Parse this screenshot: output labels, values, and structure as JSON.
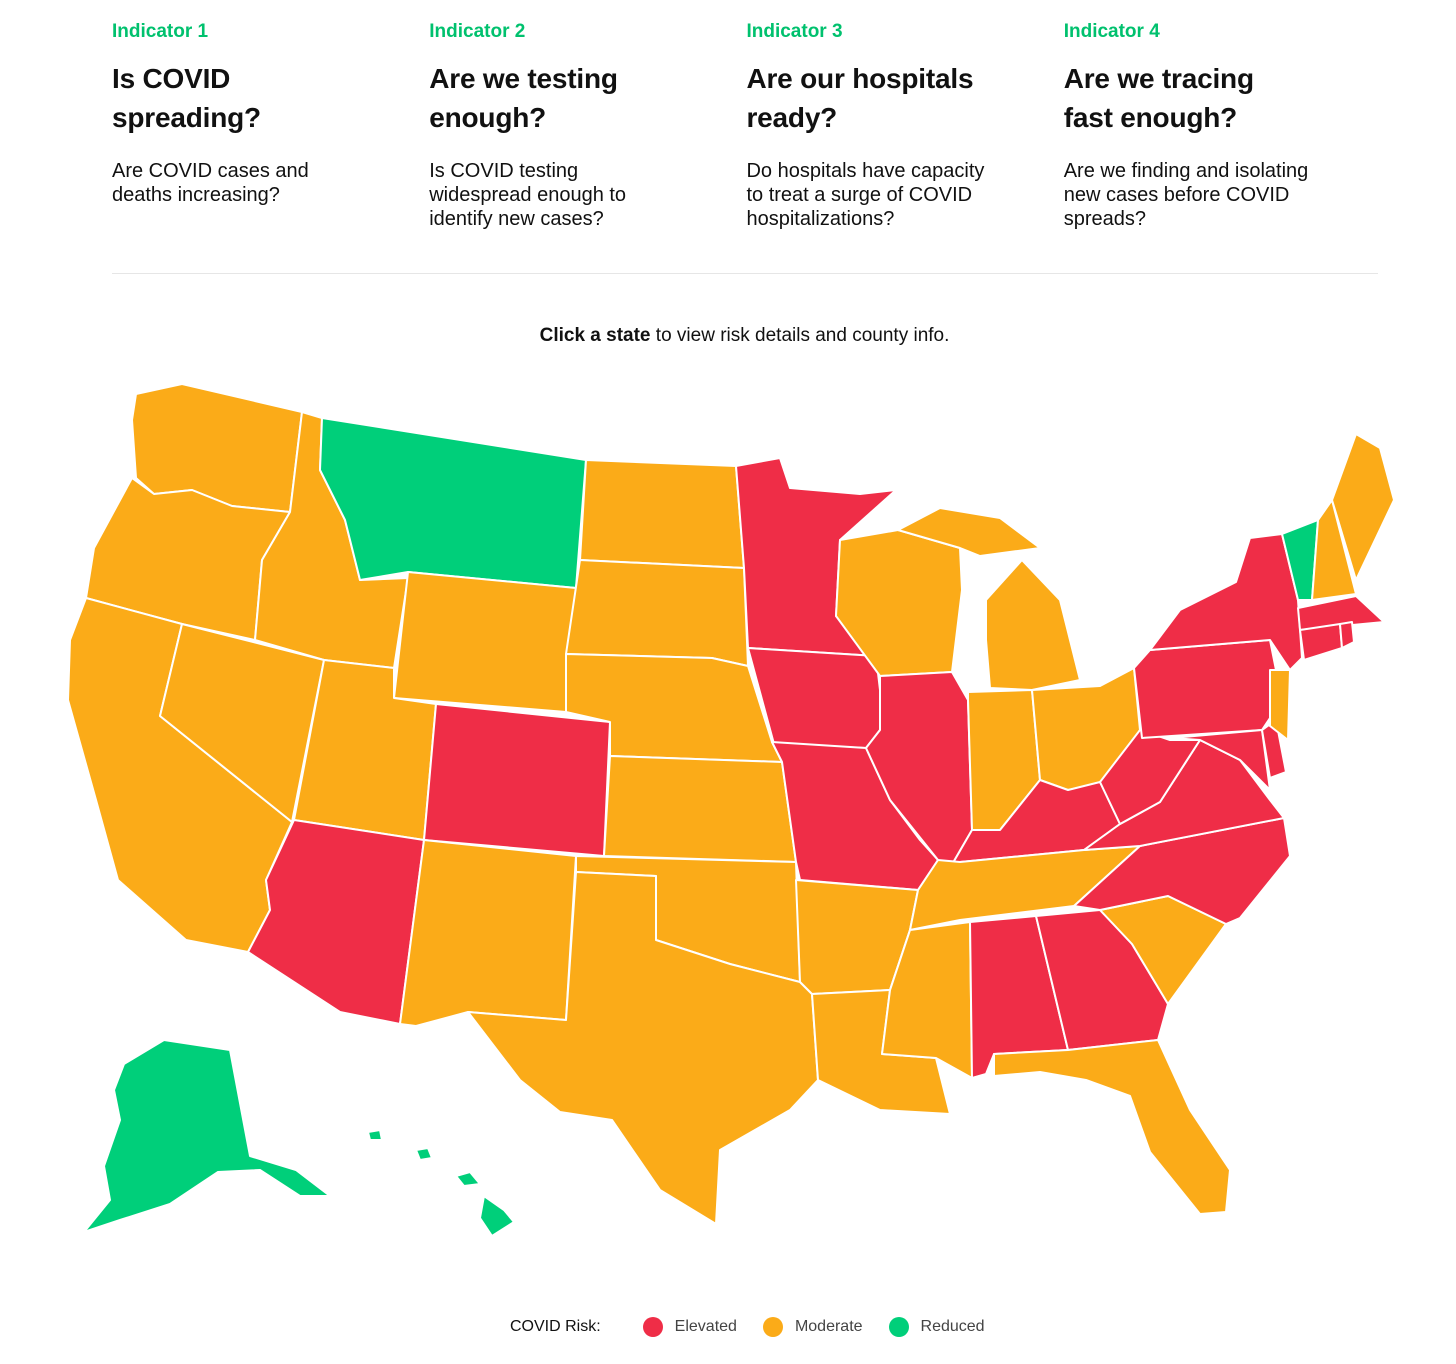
{
  "indicators": [
    {
      "label": "Indicator 1",
      "question": "Is COVID spreading?",
      "description": "Are COVID cases and deaths increasing?"
    },
    {
      "label": "Indicator 2",
      "question": "Are we testing enough?",
      "description": "Is COVID testing widespread enough to identify new cases?"
    },
    {
      "label": "Indicator 3",
      "question": "Are our hospitals ready?",
      "description": "Do hospitals have capacity to treat a surge of COVID hospitalizations?"
    },
    {
      "label": "Indicator 4",
      "question": "Are we tracing fast enough?",
      "description": "Are we finding and isolating new cases before COVID spreads?"
    }
  ],
  "instruction": {
    "bold": "Click a state",
    "rest": " to view risk details and county info."
  },
  "legend": {
    "title": "COVID Risk:",
    "items": [
      {
        "key": "elevated",
        "label": "Elevated"
      },
      {
        "key": "moderate",
        "label": "Moderate"
      },
      {
        "key": "reduced",
        "label": "Reduced"
      }
    ]
  },
  "colors": {
    "elevated": "#ef2d47",
    "moderate": "#fbab18",
    "reduced": "#00cf7a",
    "accent": "#00c16e"
  },
  "states_risk": {
    "WA": "moderate",
    "OR": "moderate",
    "CA": "moderate",
    "ID": "moderate",
    "NV": "moderate",
    "MT": "reduced",
    "WY": "moderate",
    "UT": "moderate",
    "AZ": "elevated",
    "CO": "elevated",
    "NM": "moderate",
    "ND": "moderate",
    "SD": "moderate",
    "NE": "moderate",
    "KS": "moderate",
    "OK": "moderate",
    "TX": "moderate",
    "MN": "elevated",
    "IA": "elevated",
    "MO": "elevated",
    "AR": "moderate",
    "LA": "moderate",
    "WI": "moderate",
    "IL": "elevated",
    "MS": "moderate",
    "MI": "moderate",
    "IN": "moderate",
    "OH": "moderate",
    "KY": "elevated",
    "TN": "moderate",
    "AL": "elevated",
    "GA": "elevated",
    "FL": "moderate",
    "SC": "moderate",
    "NC": "elevated",
    "VA": "elevated",
    "WV": "elevated",
    "PA": "elevated",
    "NY": "elevated",
    "VT": "reduced",
    "NH": "moderate",
    "ME": "moderate",
    "MA": "elevated",
    "RI": "elevated",
    "CT": "elevated",
    "NJ": "moderate",
    "DE": "elevated",
    "MD": "elevated",
    "AK": "reduced",
    "HI": "reduced"
  }
}
